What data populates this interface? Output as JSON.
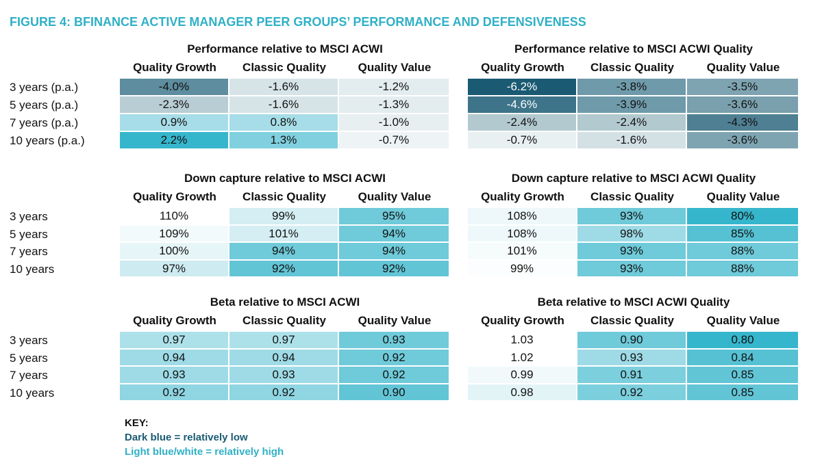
{
  "title": "FIGURE 4: BFINANCE ACTIVE MANAGER PEER GROUPS’ PERFORMANCE AND DEFENSIVENESS",
  "sections": [
    {
      "row_labels": [
        "3 years (p.a.)",
        "5 years (p.a.)",
        "7 years (p.a.)",
        "10 years (p.a.)"
      ],
      "tables": [
        {
          "title": "Performance relative to MSCI ACWI",
          "columns": [
            "Quality Growth",
            "Classic Quality",
            "Quality Value"
          ],
          "rows": [
            [
              "-4.0%",
              "-1.6%",
              "-1.2%"
            ],
            [
              "-2.3%",
              "-1.6%",
              "-1.3%"
            ],
            [
              "0.9%",
              "0.8%",
              "-1.0%"
            ],
            [
              "2.2%",
              "1.3%",
              "-0.7%"
            ]
          ],
          "colors": [
            [
              "#5d8d9e",
              "#d6e4e8",
              "#e3ecee"
            ],
            [
              "#b8cdd4",
              "#d6e4e8",
              "#e3ecee"
            ],
            [
              "#a6dde8",
              "#a6dde8",
              "#e8eff1"
            ],
            [
              "#36b6cc",
              "#80d0df",
              "#eef3f5"
            ]
          ]
        },
        {
          "title": "Performance relative to MSCI ACWI Quality",
          "columns": [
            "Quality Growth",
            "Classic Quality",
            "Quality Value"
          ],
          "rows": [
            [
              "-6.2%",
              "-3.8%",
              "-3.5%"
            ],
            [
              "-4.6%",
              "-3.9%",
              "-3.6%"
            ],
            [
              "-2.4%",
              "-2.4%",
              "-4.3%"
            ],
            [
              "-0.7%",
              "-1.6%",
              "-3.6%"
            ]
          ],
          "colors": [
            [
              "#1a5a72",
              "#6f9aaa",
              "#7ea4b2"
            ],
            [
              "#3d7489",
              "#6f9aaa",
              "#7a9fad"
            ],
            [
              "#b3c9d0",
              "#b3c9d0",
              "#4f7f92"
            ],
            [
              "#e9f0f2",
              "#d3e1e5",
              "#7ea4b2"
            ]
          ]
        }
      ]
    },
    {
      "row_labels": [
        "3 years",
        "5 years",
        "7 years",
        "10 years"
      ],
      "tables": [
        {
          "title": "Down capture relative to MSCI ACWI",
          "columns": [
            "Quality Growth",
            "Classic Quality",
            "Quality Value"
          ],
          "rows": [
            [
              "110%",
              "99%",
              "95%"
            ],
            [
              "109%",
              "101%",
              "94%"
            ],
            [
              "100%",
              "94%",
              "94%"
            ],
            [
              "97%",
              "92%",
              "92%"
            ]
          ],
          "colors": [
            [
              "#ffffff",
              "#d4eef3",
              "#6fcad9"
            ],
            [
              "#f3fafb",
              "#d4eef3",
              "#6fcad9"
            ],
            [
              "#e6f5f8",
              "#6fcad9",
              "#6fcad9"
            ],
            [
              "#cdebf1",
              "#62c5d6",
              "#62c5d6"
            ]
          ]
        },
        {
          "title": "Down capture relative to MSCI ACWI Quality",
          "columns": [
            "Quality Growth",
            "Classic Quality",
            "Quality Value"
          ],
          "rows": [
            [
              "108%",
              "93%",
              "80%"
            ],
            [
              "108%",
              "98%",
              "85%"
            ],
            [
              "101%",
              "93%",
              "88%"
            ],
            [
              "99%",
              "93%",
              "88%"
            ]
          ],
          "colors": [
            [
              "#eef8fa",
              "#6fcad9",
              "#36b6cc"
            ],
            [
              "#eef8fa",
              "#9edbe6",
              "#55c1d3"
            ],
            [
              "#f6fbfc",
              "#6fcad9",
              "#6fcad9"
            ],
            [
              "#fbfdfe",
              "#6fcad9",
              "#6fcad9"
            ]
          ]
        }
      ]
    },
    {
      "row_labels": [
        "3 years",
        "5 years",
        "7 years",
        "10 years"
      ],
      "tables": [
        {
          "title": "Beta relative to MSCI ACWI",
          "columns": [
            "Quality Growth",
            "Classic Quality",
            "Quality Value"
          ],
          "rows": [
            [
              "0.97",
              "0.97",
              "0.93"
            ],
            [
              "0.94",
              "0.94",
              "0.92"
            ],
            [
              "0.93",
              "0.93",
              "0.92"
            ],
            [
              "0.92",
              "0.92",
              "0.90"
            ]
          ],
          "colors": [
            [
              "#ade1ea",
              "#ade1ea",
              "#6fcad9"
            ],
            [
              "#9edbe6",
              "#9edbe6",
              "#6fcad9"
            ],
            [
              "#9edbe6",
              "#9edbe6",
              "#6fcad9"
            ],
            [
              "#8fd5e2",
              "#8fd5e2",
              "#62c5d6"
            ]
          ]
        },
        {
          "title": "Beta relative to MSCI ACWI Quality",
          "columns": [
            "Quality Growth",
            "Classic Quality",
            "Quality Value"
          ],
          "rows": [
            [
              "1.03",
              "0.90",
              "0.80"
            ],
            [
              "1.02",
              "0.93",
              "0.84"
            ],
            [
              "0.99",
              "0.91",
              "0.85"
            ],
            [
              "0.98",
              "0.92",
              "0.85"
            ]
          ],
          "colors": [
            [
              "#ffffff",
              "#6fcad9",
              "#36b6cc"
            ],
            [
              "#ffffff",
              "#9edbe6",
              "#55c1d3"
            ],
            [
              "#f1f9fb",
              "#7ccfdd",
              "#62c5d6"
            ],
            [
              "#e3f4f7",
              "#7ccfdd",
              "#62c5d6"
            ]
          ]
        }
      ]
    }
  ],
  "key": {
    "heading": "KEY:",
    "dark": "Dark blue = relatively low",
    "light": "Light blue/white = relatively high"
  }
}
